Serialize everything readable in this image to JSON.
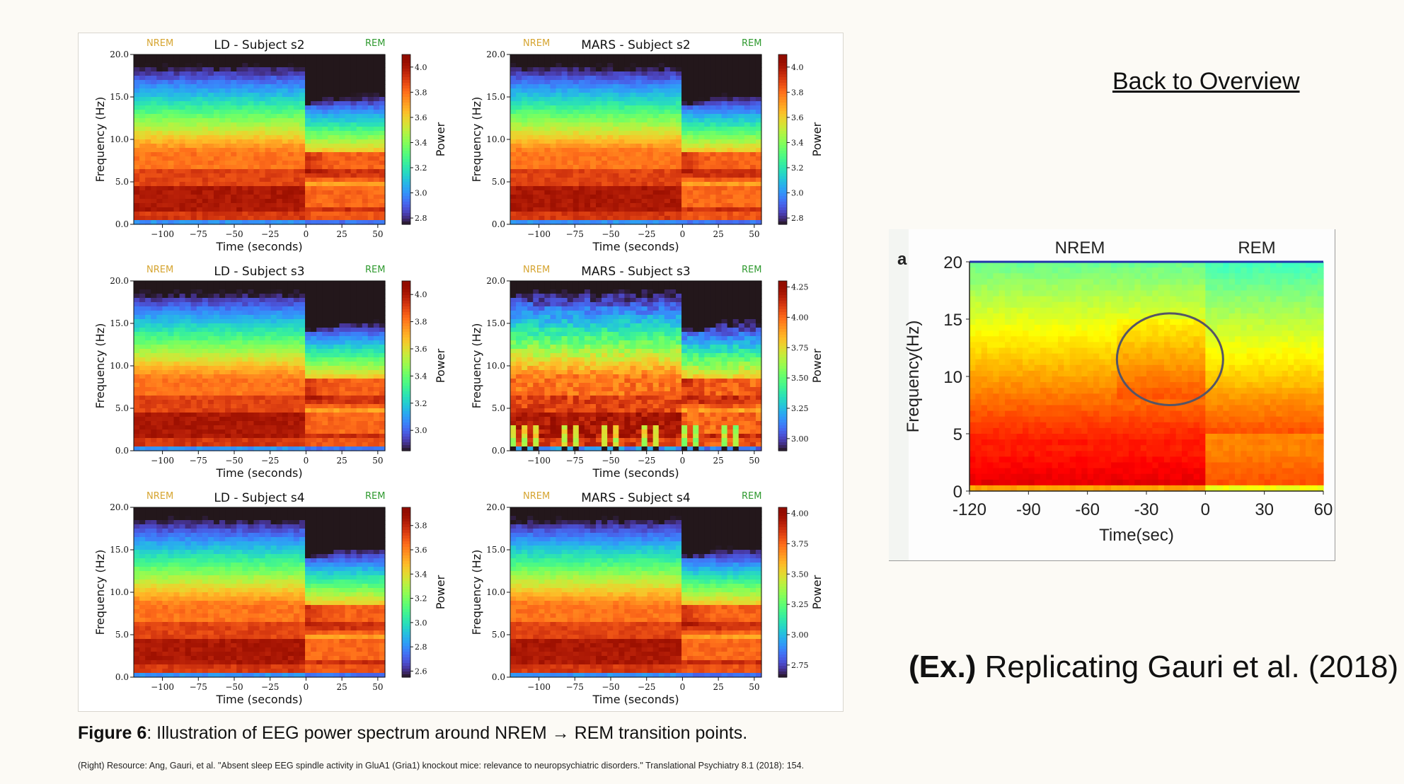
{
  "nav": {
    "back_label": "Back to Overview"
  },
  "figure_caption": {
    "label": "Figure 6",
    "text": ": Illustration of EEG power spectrum around NREM → REM transition points."
  },
  "source_note": "(Right) Resource: Ang, Gauri, et al. \"Absent sleep EEG spindle activity in GluA1 (Gria1) knockout mice: relevance to neuropsychiatric disorders.\" Translational Psychiatry 8.1 (2018): 154.",
  "example_caption": {
    "prefix": "(Ex.)",
    "text": " Replicating Gauri et al. (2018)"
  },
  "chart_data": [
    {
      "type": "heatmap",
      "title": "LD - Subject s2",
      "nrem_label": "NREM",
      "rem_label": "REM",
      "xlabel": "Time (seconds)",
      "ylabel": "Frequency (Hz)",
      "colorbar_label": "Power",
      "xlim": [
        -120,
        55
      ],
      "ylim": [
        0,
        20
      ],
      "xticks": [
        -100,
        -75,
        -50,
        -25,
        0,
        25,
        50
      ],
      "xtick_labels": [
        "−100",
        "−75",
        "−50",
        "−25",
        "0",
        "25",
        "50"
      ],
      "yticks": [
        0,
        5,
        10,
        15,
        20
      ],
      "ytick_labels": [
        "0.0",
        "5.0",
        "10.0",
        "15.0",
        "20.0"
      ],
      "color_range": [
        2.75,
        4.1
      ],
      "colorbar_ticks": [
        2.8,
        3.0,
        3.2,
        3.4,
        3.6,
        3.8,
        4.0
      ],
      "colorbar_tick_labels": [
        "2.8",
        "3.0",
        "3.2",
        "3.4",
        "3.6",
        "3.8",
        "4.0"
      ],
      "colormap": "turbo"
    },
    {
      "type": "heatmap",
      "title": "MARS - Subject s2",
      "nrem_label": "NREM",
      "rem_label": "REM",
      "xlabel": "Time (seconds)",
      "ylabel": "Frequency (Hz)",
      "colorbar_label": "Power",
      "xlim": [
        -120,
        55
      ],
      "ylim": [
        0,
        20
      ],
      "xticks": [
        -100,
        -75,
        -50,
        -25,
        0,
        25,
        50
      ],
      "xtick_labels": [
        "−100",
        "−75",
        "−50",
        "−25",
        "0",
        "25",
        "50"
      ],
      "yticks": [
        0,
        5,
        10,
        15,
        20
      ],
      "ytick_labels": [
        "0.0",
        "5.0",
        "10.0",
        "15.0",
        "20.0"
      ],
      "color_range": [
        2.75,
        4.1
      ],
      "colorbar_ticks": [
        2.8,
        3.0,
        3.2,
        3.4,
        3.6,
        3.8,
        4.0
      ],
      "colorbar_tick_labels": [
        "2.8",
        "3.0",
        "3.2",
        "3.4",
        "3.6",
        "3.8",
        "4.0"
      ],
      "colormap": "turbo"
    },
    {
      "type": "heatmap",
      "title": "LD - Subject s3",
      "nrem_label": "NREM",
      "rem_label": "REM",
      "xlabel": "Time (seconds)",
      "ylabel": "Frequency (Hz)",
      "colorbar_label": "Power",
      "xlim": [
        -120,
        55
      ],
      "ylim": [
        0,
        20
      ],
      "xticks": [
        -100,
        -75,
        -50,
        -25,
        0,
        25,
        50
      ],
      "xtick_labels": [
        "−100",
        "−75",
        "−50",
        "−25",
        "0",
        "25",
        "50"
      ],
      "yticks": [
        0,
        5,
        10,
        15,
        20
      ],
      "ytick_labels": [
        "0.0",
        "5.0",
        "10.0",
        "15.0",
        "20.0"
      ],
      "color_range": [
        2.85,
        4.1
      ],
      "colorbar_ticks": [
        3.0,
        3.2,
        3.4,
        3.6,
        3.8,
        4.0
      ],
      "colorbar_tick_labels": [
        "3.0",
        "3.2",
        "3.4",
        "3.6",
        "3.8",
        "4.0"
      ],
      "colormap": "turbo"
    },
    {
      "type": "heatmap",
      "title": "MARS - Subject s3",
      "nrem_label": "NREM",
      "rem_label": "REM",
      "xlabel": "Time (seconds)",
      "ylabel": "Frequency (Hz)",
      "colorbar_label": "Power",
      "xlim": [
        -120,
        55
      ],
      "ylim": [
        0,
        20
      ],
      "xticks": [
        -100,
        -75,
        -50,
        -25,
        0,
        25,
        50
      ],
      "xtick_labels": [
        "−100",
        "−75",
        "−50",
        "−25",
        "0",
        "25",
        "50"
      ],
      "yticks": [
        0,
        5,
        10,
        15,
        20
      ],
      "ytick_labels": [
        "0.0",
        "5.0",
        "10.0",
        "15.0",
        "20.0"
      ],
      "color_range": [
        2.9,
        4.3
      ],
      "colorbar_ticks": [
        3.0,
        3.25,
        3.5,
        3.75,
        4.0,
        4.25
      ],
      "colorbar_tick_labels": [
        "3.00",
        "3.25",
        "3.50",
        "3.75",
        "4.00",
        "4.25"
      ],
      "colormap": "turbo"
    },
    {
      "type": "heatmap",
      "title": "LD - Subject s4",
      "nrem_label": "NREM",
      "rem_label": "REM",
      "xlabel": "Time (seconds)",
      "ylabel": "Frequency (Hz)",
      "colorbar_label": "Power",
      "xlim": [
        -120,
        55
      ],
      "ylim": [
        0,
        20
      ],
      "xticks": [
        -100,
        -75,
        -50,
        -25,
        0,
        25,
        50
      ],
      "xtick_labels": [
        "−100",
        "−75",
        "−50",
        "−25",
        "0",
        "25",
        "50"
      ],
      "yticks": [
        0,
        5,
        10,
        15,
        20
      ],
      "ytick_labels": [
        "0.0",
        "5.0",
        "10.0",
        "15.0",
        "20.0"
      ],
      "color_range": [
        2.55,
        3.95
      ],
      "colorbar_ticks": [
        2.6,
        2.8,
        3.0,
        3.2,
        3.4,
        3.6,
        3.8
      ],
      "colorbar_tick_labels": [
        "2.6",
        "2.8",
        "3.0",
        "3.2",
        "3.4",
        "3.6",
        "3.8"
      ],
      "colormap": "turbo"
    },
    {
      "type": "heatmap",
      "title": "MARS - Subject s4",
      "nrem_label": "NREM",
      "rem_label": "REM",
      "xlabel": "Time (seconds)",
      "ylabel": "Frequency (Hz)",
      "colorbar_label": "Power",
      "xlim": [
        -120,
        55
      ],
      "ylim": [
        0,
        20
      ],
      "xticks": [
        -100,
        -75,
        -50,
        -25,
        0,
        25,
        50
      ],
      "xtick_labels": [
        "−100",
        "−75",
        "−50",
        "−25",
        "0",
        "25",
        "50"
      ],
      "yticks": [
        0,
        5,
        10,
        15,
        20
      ],
      "ytick_labels": [
        "0.0",
        "5.0",
        "10.0",
        "15.0",
        "20.0"
      ],
      "color_range": [
        2.65,
        4.05
      ],
      "colorbar_ticks": [
        2.75,
        3.0,
        3.25,
        3.5,
        3.75,
        4.0
      ],
      "colorbar_tick_labels": [
        "2.75",
        "3.00",
        "3.25",
        "3.50",
        "3.75",
        "4.00"
      ],
      "colormap": "turbo"
    },
    {
      "type": "heatmap",
      "panel_label": "a",
      "nrem_label": "NREM",
      "rem_label": "REM",
      "nrem_color": "#2a3ad6",
      "rem_color": "#e0307a",
      "xlabel": "Time(sec)",
      "ylabel": "Frequency(Hz)",
      "xlim": [
        -120,
        60
      ],
      "ylim": [
        0,
        20
      ],
      "xticks": [
        -120,
        -90,
        -60,
        -30,
        0,
        30,
        60
      ],
      "xtick_labels": [
        "-120",
        "-90",
        "-60",
        "-30",
        "0",
        "30",
        "60"
      ],
      "yticks": [
        0,
        5,
        10,
        15,
        20
      ],
      "ytick_labels": [
        "0",
        "5",
        "10",
        "15",
        "20"
      ],
      "colormap": "jet",
      "ellipse": {
        "center": [
          -18,
          11.5
        ],
        "radius": [
          27,
          4
        ],
        "color": "#555566"
      }
    }
  ]
}
